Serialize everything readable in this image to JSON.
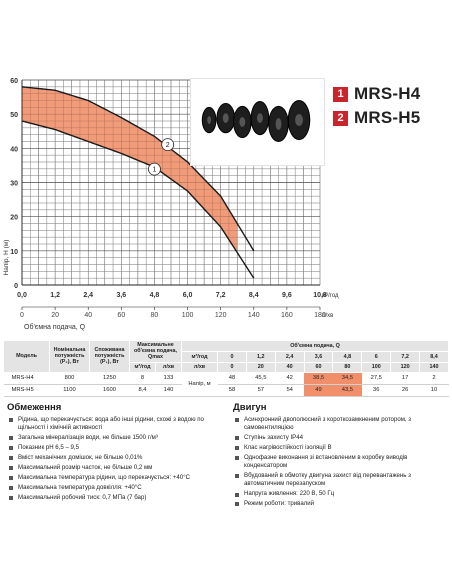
{
  "models": [
    {
      "num": "1",
      "name": "MRS-H4"
    },
    {
      "num": "2",
      "name": "MRS-H5"
    }
  ],
  "colors": {
    "accent": "#c8262a",
    "shade": "#f08a62",
    "grid": "#777777",
    "highlight": "#f28f6b",
    "header_bg": "#e4e4e4"
  },
  "chart_data": {
    "type": "line",
    "ylabel": "Напір, Н (м)",
    "xlabel": "Об'ємна подача, Q",
    "x_unit_top": "м³/год",
    "x_unit_bottom": "л/хв",
    "grid": true,
    "ylim": [
      0,
      60
    ],
    "yticks": [
      0,
      10,
      20,
      30,
      40,
      50,
      60
    ],
    "xlim_m3h": [
      0,
      12
    ],
    "xticks_m3h": [
      "0,0",
      "1,2",
      "2,4",
      "3,6",
      "4,8",
      "6,0",
      "7,2",
      "8,4",
      "9,6",
      "10,8"
    ],
    "xticks_lmin": [
      "0",
      "20",
      "40",
      "60",
      "80",
      "100",
      "120",
      "140",
      "160",
      "180"
    ],
    "series": [
      {
        "name": "1",
        "x": [
          0,
          20,
          40,
          60,
          80,
          100,
          120,
          140
        ],
        "y": [
          48,
          45.5,
          42,
          38.5,
          34.5,
          27.5,
          17,
          2
        ]
      },
      {
        "name": "2",
        "x": [
          0,
          20,
          40,
          60,
          80,
          100,
          120,
          140
        ],
        "y": [
          58,
          57,
          54,
          49,
          43.5,
          36,
          26,
          10
        ]
      }
    ],
    "shaded_flow_range_lmin": [
      0,
      130
    ]
  },
  "table": {
    "headers": {
      "model": "Модель",
      "power_nominal": "Номінальна потужність (P₂), Вт",
      "power_consumed": "Споживана потужність (P₁), Вт",
      "max_flow": "Максимальне об'ємна подача, Qmax",
      "max_flow_unit1": "м³/год",
      "max_flow_unit2": "л/хв",
      "flow_title": "Об'ємна подача, Q",
      "unit_m3h": "м³/год",
      "unit_lmin": "л/хв",
      "head_label": "Напір, м",
      "q_m3h": [
        "0",
        "1,2",
        "2,4",
        "3,6",
        "4,8",
        "6",
        "7,2",
        "8,4"
      ],
      "q_lmin": [
        "0",
        "20",
        "40",
        "60",
        "80",
        "100",
        "120",
        "140"
      ]
    },
    "rows": [
      {
        "model": "MRS-H4",
        "p2": "800",
        "p1": "1250",
        "qmax_m3h": "8",
        "qmax_lmin": "133",
        "heads": [
          "48",
          "45,5",
          "42",
          "38,5",
          "34,5",
          "27,5",
          "17",
          "2"
        ]
      },
      {
        "model": "MRS-H5",
        "p2": "1100",
        "p1": "1600",
        "qmax_m3h": "8,4",
        "qmax_lmin": "140",
        "heads": [
          "58",
          "57",
          "54",
          "49",
          "43,5",
          "36",
          "26",
          "10"
        ]
      }
    ],
    "highlight_columns": [
      3,
      4
    ]
  },
  "limits": {
    "title": "Обмеження",
    "items": [
      "Рідина, що перекачується: вода або інші рідини, схожі з водою по щільності і хімічній активності",
      "Загальна мінералізація води, не більше 1500 г/м³",
      "Показник pH 6,5 – 9,5",
      "Вміст механічних домішок, не більше 0,01%",
      "Максимальний розмір часток, не більше 0,2 мм",
      "Максимальна температура рідини, що перекачується: +40°C",
      "Максимальна температура довкілля: +40°C",
      "Максимальний робочий тиск: 0,7 МПа (7 бар)"
    ]
  },
  "motor": {
    "title": "Двигун",
    "items": [
      "Асинхронний двополюсний з короткозамкненим ротором, з самовентиляцією",
      "Ступінь захисту IP44",
      "Клас нагрівостійкості ізоляції B",
      "Однофазне виконання зі встановленим в коробку виводів конденсатором",
      "Вбудований в обмотку двигуна захист від перевантажень з автоматичним перезапуском",
      "Напруга живлення: 220 В, 50 Гц",
      "Режим роботи: тривалий"
    ]
  }
}
